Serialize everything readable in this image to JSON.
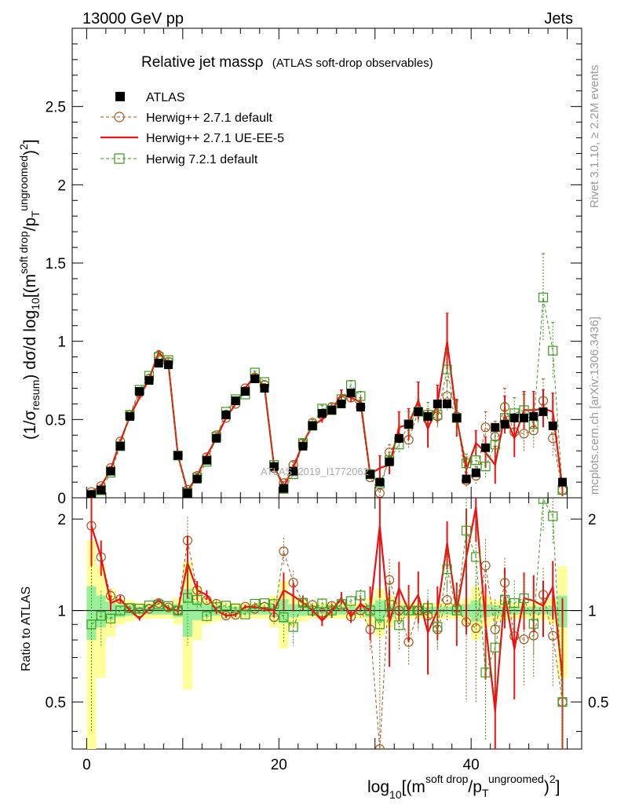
{
  "header": {
    "beam": "13000 GeV pp",
    "process": "Jets",
    "title_main": "Relative jet massρ",
    "title_sub": "(ATLAS soft-drop observables)",
    "side_rivet": "Rivet 3.1.10, ≥ 2.2M events",
    "side_mcplots": "mcplots.cern.ch [arXiv:1306.3436]",
    "watermark": "ATLAS_2019_I1772062"
  },
  "axes": {
    "top_ylabel": "(1/σresum) dσ/d log10[(m soft drop / pT ungroomed)2]",
    "bottom_ylabel": "Ratio to ATLAS",
    "xlabel": "log10[(m soft drop / pT ungroomed)2]",
    "top_y_ticks": [
      "0",
      "0.5",
      "1",
      "1.5",
      "2",
      "2.5"
    ],
    "ratio_y_ticks": [
      "0.5",
      "1",
      "2"
    ],
    "x_ticks": [
      "0",
      "20",
      "40"
    ]
  },
  "legend": {
    "atlas": "ATLAS",
    "h271": "Herwig++ 2.7.1 default",
    "ue": "Herwig++ 2.7.1 UE-EE-5",
    "h721": "Herwig 7.2.1 default"
  },
  "colors": {
    "atlas": "#000000",
    "h271": "#a5561a",
    "ue": "#ee1111",
    "h721": "#3c9a1a",
    "band_inner": "#99ee99",
    "band_outer": "#ffff99"
  },
  "chart_data": {
    "type": "scatter",
    "x": [
      0.5,
      1.5,
      2.5,
      3.5,
      4.5,
      5.5,
      6.5,
      7.5,
      8.5,
      9.5,
      10.5,
      11.5,
      12.5,
      13.5,
      14.5,
      15.5,
      16.5,
      17.5,
      18.5,
      19.5,
      20.5,
      21.5,
      22.5,
      23.5,
      24.5,
      25.5,
      26.5,
      27.5,
      28.5,
      29.5,
      30.5,
      31.5,
      32.5,
      33.5,
      34.5,
      35.5,
      36.5,
      37.5,
      38.5,
      39.5,
      40.5,
      41.5,
      42.5,
      43.5,
      44.5,
      45.5,
      46.5,
      47.5,
      48.5,
      49.5
    ],
    "xlim": [
      -1.5,
      51.5
    ],
    "ylim": [
      0,
      3.0
    ],
    "ratio_ylim": [
      0.35,
      2.35
    ],
    "ratio_log_scale": true,
    "series": [
      {
        "name": "ATLAS",
        "values": [
          0.02,
          0.05,
          0.17,
          0.33,
          0.52,
          0.68,
          0.75,
          0.86,
          0.85,
          0.27,
          0.03,
          0.12,
          0.24,
          0.38,
          0.53,
          0.62,
          0.68,
          0.76,
          0.7,
          0.2,
          0.06,
          0.17,
          0.33,
          0.46,
          0.54,
          0.56,
          0.6,
          0.67,
          0.58,
          0.15,
          0.1,
          0.23,
          0.38,
          0.47,
          0.55,
          0.52,
          0.6,
          0.6,
          0.51,
          0.12,
          0.16,
          0.32,
          0.45,
          0.47,
          0.51,
          0.51,
          0.52,
          0.55,
          0.46,
          0.1
        ],
        "band_inner": [
          0.2,
          0.12,
          0.07,
          0.05,
          0.04,
          0.03,
          0.03,
          0.03,
          0.03,
          0.05,
          0.18,
          0.07,
          0.05,
          0.04,
          0.03,
          0.03,
          0.03,
          0.03,
          0.03,
          0.05,
          0.09,
          0.05,
          0.04,
          0.03,
          0.03,
          0.03,
          0.03,
          0.03,
          0.03,
          0.05,
          0.08,
          0.05,
          0.04,
          0.03,
          0.03,
          0.03,
          0.03,
          0.03,
          0.03,
          0.05,
          0.08,
          0.05,
          0.04,
          0.03,
          0.03,
          0.03,
          0.03,
          0.03,
          0.04,
          0.12
        ],
        "band_outer": [
          0.7,
          0.4,
          0.18,
          0.1,
          0.08,
          0.06,
          0.06,
          0.06,
          0.06,
          0.1,
          0.45,
          0.2,
          0.1,
          0.08,
          0.06,
          0.06,
          0.06,
          0.06,
          0.06,
          0.12,
          0.25,
          0.12,
          0.08,
          0.06,
          0.06,
          0.06,
          0.06,
          0.06,
          0.06,
          0.1,
          0.18,
          0.12,
          0.08,
          0.06,
          0.06,
          0.06,
          0.06,
          0.06,
          0.06,
          0.1,
          0.2,
          0.12,
          0.08,
          0.07,
          0.06,
          0.06,
          0.06,
          0.07,
          0.1,
          0.4
        ]
      },
      {
        "name": "Herwig++ 2.7.1 default",
        "values": [
          0.038,
          0.075,
          0.19,
          0.36,
          0.53,
          0.67,
          0.76,
          0.91,
          0.87,
          0.27,
          0.051,
          0.14,
          0.26,
          0.4,
          0.51,
          0.6,
          0.7,
          0.77,
          0.72,
          0.19,
          0.094,
          0.21,
          0.35,
          0.48,
          0.53,
          0.58,
          0.62,
          0.64,
          0.58,
          0.13,
          0.03,
          0.29,
          0.38,
          0.37,
          0.55,
          0.5,
          0.52,
          0.65,
          0.52,
          0.11,
          0.14,
          0.45,
          0.39,
          0.58,
          0.42,
          0.41,
          0.43,
          0.62,
          0.38,
          0.05
        ],
        "errors": [
          0.01,
          0.01,
          0.01,
          0.01,
          0.01,
          0.01,
          0.01,
          0.01,
          0.01,
          0.01,
          0.01,
          0.01,
          0.01,
          0.01,
          0.01,
          0.01,
          0.01,
          0.01,
          0.01,
          0.01,
          0.01,
          0.02,
          0.02,
          0.02,
          0.02,
          0.02,
          0.03,
          0.03,
          0.03,
          0.02,
          0.03,
          0.05,
          0.06,
          0.06,
          0.07,
          0.07,
          0.08,
          0.1,
          0.1,
          0.05,
          0.06,
          0.1,
          0.1,
          0.12,
          0.12,
          0.12,
          0.12,
          0.14,
          0.12,
          0.05
        ]
      },
      {
        "name": "Herwig++ 2.7.1 UE-EE-5",
        "values": [
          0.038,
          0.075,
          0.18,
          0.36,
          0.52,
          0.64,
          0.76,
          0.93,
          0.86,
          0.27,
          0.043,
          0.14,
          0.27,
          0.38,
          0.51,
          0.6,
          0.7,
          0.78,
          0.71,
          0.2,
          0.07,
          0.19,
          0.35,
          0.46,
          0.5,
          0.56,
          0.66,
          0.64,
          0.61,
          0.15,
          0.19,
          0.21,
          0.45,
          0.47,
          0.62,
          0.44,
          0.6,
          1.0,
          0.51,
          0.18,
          0.35,
          0.29,
          0.21,
          0.53,
          0.38,
          0.56,
          0.56,
          0.57,
          0.55,
          0.06
        ],
        "errors": [
          0.01,
          0.01,
          0.01,
          0.01,
          0.01,
          0.01,
          0.01,
          0.01,
          0.01,
          0.01,
          0.01,
          0.01,
          0.01,
          0.01,
          0.01,
          0.01,
          0.01,
          0.01,
          0.01,
          0.01,
          0.01,
          0.02,
          0.02,
          0.02,
          0.02,
          0.03,
          0.03,
          0.03,
          0.03,
          0.03,
          0.08,
          0.06,
          0.1,
          0.1,
          0.12,
          0.12,
          0.12,
          0.18,
          0.12,
          0.08,
          0.08,
          0.1,
          0.12,
          0.12,
          0.12,
          0.12,
          0.12,
          0.12,
          0.12,
          0.05
        ]
      },
      {
        "name": "Herwig 7.2.1 default",
        "values": [
          0.018,
          0.048,
          0.16,
          0.33,
          0.53,
          0.69,
          0.78,
          0.9,
          0.88,
          0.27,
          0.033,
          0.13,
          0.23,
          0.39,
          0.55,
          0.63,
          0.66,
          0.8,
          0.74,
          0.21,
          0.057,
          0.15,
          0.35,
          0.46,
          0.57,
          0.56,
          0.63,
          0.72,
          0.65,
          0.15,
          0.09,
          0.24,
          0.34,
          0.47,
          0.55,
          0.53,
          0.53,
          0.82,
          0.51,
          0.22,
          0.24,
          0.2,
          0.34,
          0.51,
          0.54,
          0.56,
          0.47,
          1.28,
          0.94,
          0.05
        ],
        "errors": [
          0.01,
          0.01,
          0.01,
          0.01,
          0.01,
          0.01,
          0.01,
          0.01,
          0.01,
          0.01,
          0.01,
          0.01,
          0.01,
          0.01,
          0.01,
          0.01,
          0.01,
          0.01,
          0.01,
          0.01,
          0.01,
          0.02,
          0.02,
          0.02,
          0.02,
          0.03,
          0.03,
          0.03,
          0.03,
          0.02,
          0.03,
          0.05,
          0.06,
          0.08,
          0.08,
          0.08,
          0.08,
          0.12,
          0.1,
          0.06,
          0.08,
          0.08,
          0.1,
          0.1,
          0.1,
          0.1,
          0.1,
          0.28,
          0.18,
          0.04
        ]
      }
    ]
  }
}
